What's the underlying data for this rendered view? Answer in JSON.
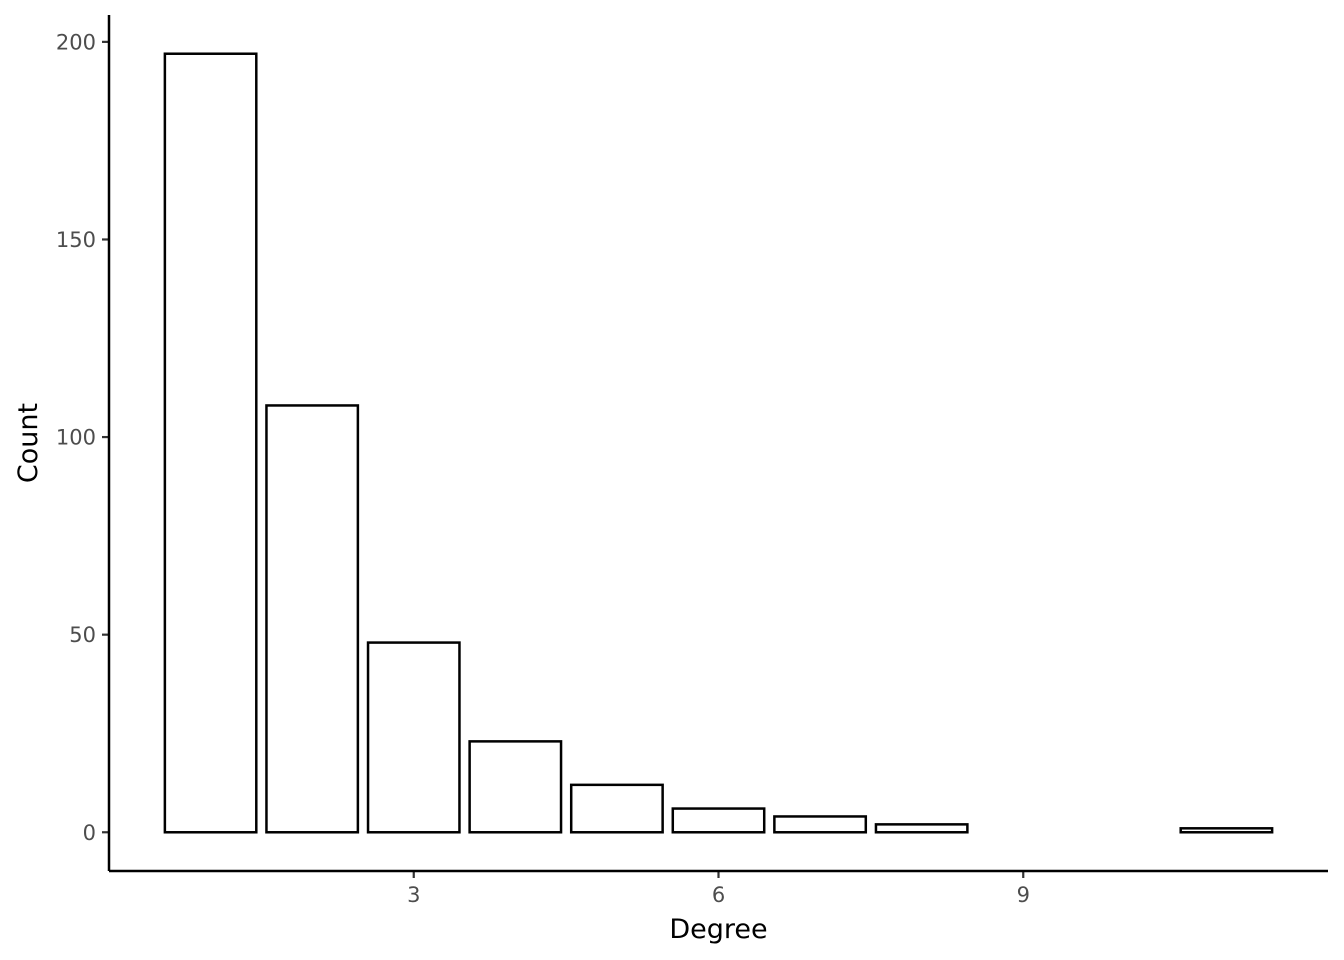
{
  "chart_data": {
    "type": "bar",
    "xlabel": "Degree",
    "ylabel": "Count",
    "x": [
      1,
      2,
      3,
      4,
      5,
      6,
      7,
      8,
      11
    ],
    "values": [
      197,
      108,
      48,
      23,
      12,
      6,
      4,
      2,
      1
    ],
    "xlim": [
      -0.0,
      12.0
    ],
    "ylim": [
      -9.8,
      206.8
    ],
    "x_ticks": [
      3,
      6,
      9
    ],
    "y_ticks": [
      0,
      50,
      100,
      150,
      200
    ],
    "grid": false,
    "bar_fill": "#ffffff",
    "bar_stroke": "#000000",
    "tick_label_color": "#4d4d4d"
  }
}
